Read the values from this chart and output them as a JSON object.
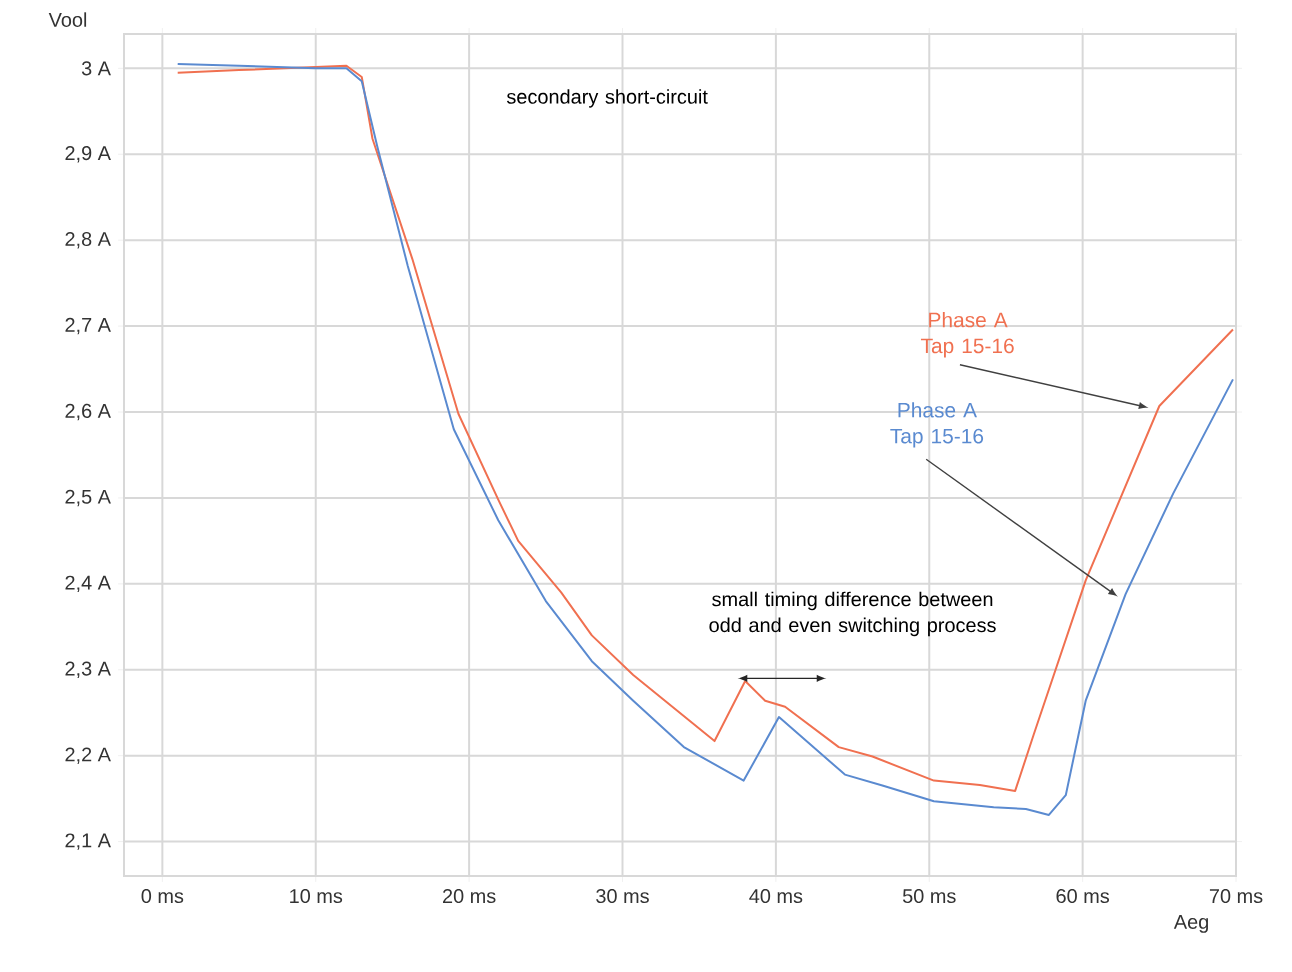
{
  "chart_data": {
    "type": "line",
    "xlabel": "Aeg",
    "ylabel": "Vool",
    "xlim": [
      -2.5,
      70
    ],
    "ylim": [
      2.06,
      3.04
    ],
    "xticks": [
      {
        "value": 0,
        "label": "0 ms"
      },
      {
        "value": 10,
        "label": "10 ms"
      },
      {
        "value": 20,
        "label": "20 ms"
      },
      {
        "value": 30,
        "label": "30 ms"
      },
      {
        "value": 40,
        "label": "40 ms"
      },
      {
        "value": 50,
        "label": "50 ms"
      },
      {
        "value": 60,
        "label": "60 ms"
      },
      {
        "value": 70,
        "label": "70 ms"
      }
    ],
    "yticks": [
      {
        "value": 2.1,
        "label": "2,1 A"
      },
      {
        "value": 2.2,
        "label": "2,2 A"
      },
      {
        "value": 2.3,
        "label": "2,3 A"
      },
      {
        "value": 2.4,
        "label": "2,4 A"
      },
      {
        "value": 2.5,
        "label": "2,5 A"
      },
      {
        "value": 2.6,
        "label": "2,6 A"
      },
      {
        "value": 2.7,
        "label": "2,7 A"
      },
      {
        "value": 2.8,
        "label": "2,8 A"
      },
      {
        "value": 2.9,
        "label": "2,9 A"
      },
      {
        "value": 3.0,
        "label": "3 A"
      }
    ],
    "grid": true,
    "annotations": [
      "secondary short-circuit",
      "small timing difference between odd and even switching process"
    ],
    "series": [
      {
        "name": "Phase A Tap 15-16",
        "color": "#f07050",
        "x": [
          1,
          5,
          12,
          13,
          13.7,
          16.3,
          19.3,
          21.9,
          23.2,
          26,
          28,
          30.7,
          36,
          38,
          39.3,
          40.6,
          44.1,
          46.3,
          50.3,
          53.3,
          55.6,
          56.8,
          60.2,
          65,
          69.8
        ],
        "values": [
          2.995,
          2.998,
          3.003,
          2.99,
          2.918,
          2.778,
          2.598,
          2.498,
          2.45,
          2.39,
          2.34,
          2.294,
          2.217,
          2.287,
          2.264,
          2.257,
          2.21,
          2.199,
          2.171,
          2.166,
          2.159,
          2.224,
          2.404,
          2.607,
          2.696
        ]
      },
      {
        "name": "Phase A Tap 15-16",
        "color": "#5a8ad0",
        "x": [
          1,
          5,
          10,
          12,
          13,
          14,
          16,
          19,
          21.9,
          25,
          28,
          30.7,
          34,
          37.9,
          40.2,
          44.5,
          47,
          50.3,
          54.2,
          56.3,
          57.8,
          58.9,
          60.2,
          62.8,
          65.9,
          69.8
        ],
        "values": [
          3.005,
          3.003,
          3.0,
          3.0,
          2.985,
          2.91,
          2.77,
          2.58,
          2.474,
          2.38,
          2.31,
          2.264,
          2.21,
          2.171,
          2.245,
          2.178,
          2.165,
          2.147,
          2.14,
          2.138,
          2.131,
          2.154,
          2.264,
          2.388,
          2.505,
          2.638
        ]
      }
    ]
  }
}
